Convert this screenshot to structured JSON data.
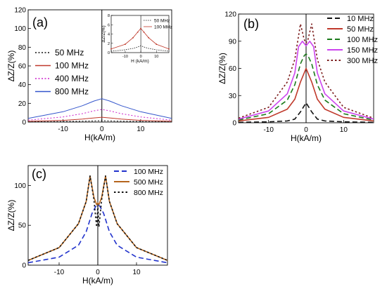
{
  "chart_data": [
    {
      "type": "line",
      "panel_label": "(a)",
      "xlabel": "H(kA/m)",
      "ylabel": "ΔZ/Z(%)",
      "xlim": [
        -19,
        18
      ],
      "ylim": [
        0,
        120
      ],
      "xticks": [
        -10,
        0,
        10
      ],
      "yticks": [
        0,
        20,
        40,
        60,
        80,
        100,
        120
      ],
      "legend": "center-left",
      "series": [
        {
          "name": "50 MHz",
          "color": "#111111",
          "dash": "dotted",
          "x": [
            -19,
            -10,
            -5,
            -2,
            0,
            2,
            5,
            10,
            18
          ],
          "values": [
            0.3,
            0.6,
            0.9,
            1.2,
            1.5,
            1.2,
            0.9,
            0.6,
            0.3
          ]
        },
        {
          "name": "100 MHz",
          "color": "#c0392b",
          "dash": "solid",
          "x": [
            -19,
            -10,
            -5,
            -2,
            0,
            2,
            5,
            10,
            18
          ],
          "values": [
            0.8,
            1.8,
            3.2,
            4.4,
            5.2,
            4.4,
            3.2,
            1.8,
            0.8
          ]
        },
        {
          "name": "400 MHz",
          "color": "#cc22cc",
          "dash": "dotted",
          "x": [
            -19,
            -10,
            -5,
            -2,
            0,
            2,
            5,
            10,
            18
          ],
          "values": [
            2,
            5.5,
            9,
            12,
            13.5,
            12,
            9,
            5.5,
            2
          ]
        },
        {
          "name": "800 MHz",
          "color": "#3355cc",
          "dash": "solid",
          "x": [
            -19,
            -10,
            -5,
            -2,
            0,
            2,
            5,
            10,
            18
          ],
          "values": [
            4,
            11,
            17.5,
            22.5,
            25,
            22.5,
            17.5,
            11,
            4
          ]
        }
      ],
      "inset": {
        "ylabel": "ΔZ/Z(%)",
        "xlabel": "H (kA/m)",
        "xlim": [
          -19,
          18
        ],
        "ylim": [
          0,
          8
        ],
        "xticks": [
          -10,
          0,
          10
        ],
        "yticks": [
          0,
          2,
          4,
          6,
          8
        ],
        "legend": "top-right",
        "series": [
          {
            "name": "50 MHz",
            "color": "#111111",
            "dash": "dotted",
            "x": [
              -19,
              -10,
              -5,
              -2,
              0,
              2,
              5,
              10,
              18
            ],
            "values": [
              0.3,
              0.6,
              0.9,
              1.2,
              1.5,
              1.2,
              0.9,
              0.6,
              0.3
            ]
          },
          {
            "name": "100 MHz",
            "color": "#c0392b",
            "dash": "solid",
            "x": [
              -19,
              -10,
              -5,
              -2,
              0,
              2,
              5,
              10,
              18
            ],
            "values": [
              0.8,
              1.8,
              3.2,
              4.4,
              5.2,
              4.4,
              3.2,
              1.8,
              0.8
            ]
          }
        ]
      }
    },
    {
      "type": "line",
      "panel_label": "(b)",
      "xlabel": "H(kA/m)",
      "ylabel": "ΔZ/Z(%)",
      "xlim": [
        -18,
        18
      ],
      "ylim": [
        0,
        120
      ],
      "xticks": [
        -10,
        0,
        10
      ],
      "yticks": [
        0,
        30,
        60,
        90,
        120
      ],
      "legend": "top-right",
      "series": [
        {
          "name": "10 MHz",
          "color": "#111111",
          "dash": "dashed",
          "x": [
            -18,
            -10,
            -5,
            -3,
            -1.5,
            0,
            1.5,
            3,
            5,
            10,
            18
          ],
          "values": [
            0.5,
            1,
            2,
            4,
            12,
            22,
            12,
            4,
            2,
            1,
            0.5
          ]
        },
        {
          "name": "50 MHz",
          "color": "#c0392b",
          "dash": "solid",
          "x": [
            -18,
            -10,
            -5,
            -3,
            -1.5,
            0,
            1.5,
            3,
            5,
            10,
            18
          ],
          "values": [
            2,
            6,
            15,
            26,
            45,
            60,
            45,
            26,
            15,
            6,
            2
          ]
        },
        {
          "name": "100 MHz",
          "color": "#1a7a1a",
          "dash": "dashed",
          "x": [
            -18,
            -10,
            -5,
            -3,
            -1.5,
            -0.5,
            0,
            0.5,
            1.5,
            3,
            5,
            10,
            18
          ],
          "values": [
            3,
            10,
            25,
            42,
            65,
            74,
            76,
            74,
            65,
            42,
            25,
            10,
            3
          ]
        },
        {
          "name": "150 MHz",
          "color": "#cc44ee",
          "dash": "solid",
          "x": [
            -18,
            -10,
            -5,
            -3,
            -2,
            -1,
            0,
            1,
            2,
            3,
            5,
            10,
            18
          ],
          "values": [
            4,
            13,
            32,
            55,
            84,
            90,
            85,
            90,
            84,
            55,
            32,
            13,
            4
          ]
        },
        {
          "name": "300 MHz",
          "color": "#7a1a1a",
          "dash": "dotted",
          "x": [
            -18,
            -10,
            -5,
            -3,
            -1.5,
            -0.5,
            0,
            0.5,
            1.5,
            3,
            5,
            10,
            18
          ],
          "values": [
            5,
            17,
            45,
            70,
            109,
            92,
            88,
            92,
            109,
            70,
            45,
            17,
            5
          ]
        }
      ]
    },
    {
      "type": "line",
      "panel_label": "(c)",
      "xlabel": "H(kA/m)",
      "ylabel": "ΔZ/Z(%)",
      "xlim": [
        -18,
        18
      ],
      "ylim": [
        0,
        125
      ],
      "xticks": [
        -10,
        0,
        10
      ],
      "yticks": [
        0,
        50,
        100
      ],
      "legend": "top-right",
      "series": [
        {
          "name": "100 MHz",
          "color": "#2233cc",
          "dash": "dashed",
          "x": [
            -18,
            -10,
            -5,
            -3,
            -1.5,
            -0.5,
            0,
            0.5,
            1.5,
            3,
            5,
            10,
            18
          ],
          "values": [
            3,
            10,
            25,
            42,
            65,
            74,
            76,
            74,
            65,
            42,
            25,
            10,
            3
          ]
        },
        {
          "name": "500 MHz",
          "color": "#b5651d",
          "dash": "solid",
          "x": [
            -18,
            -10,
            -5,
            -3,
            -2,
            -1,
            -0.3,
            0,
            0.3,
            1,
            2,
            3,
            5,
            10,
            18
          ],
          "values": [
            6,
            22,
            52,
            80,
            112,
            85,
            76,
            78,
            76,
            85,
            112,
            80,
            52,
            22,
            6
          ]
        },
        {
          "name": "800 MHz",
          "color": "#111111",
          "dash": "dotted",
          "x": [
            -18,
            -10,
            -5,
            -3,
            -2,
            -1,
            -0.3,
            0,
            0.3,
            1,
            2,
            3,
            5,
            10,
            18
          ],
          "values": [
            6,
            22,
            52,
            80,
            112,
            82,
            48,
            75,
            48,
            82,
            112,
            80,
            52,
            22,
            6
          ]
        }
      ]
    }
  ]
}
